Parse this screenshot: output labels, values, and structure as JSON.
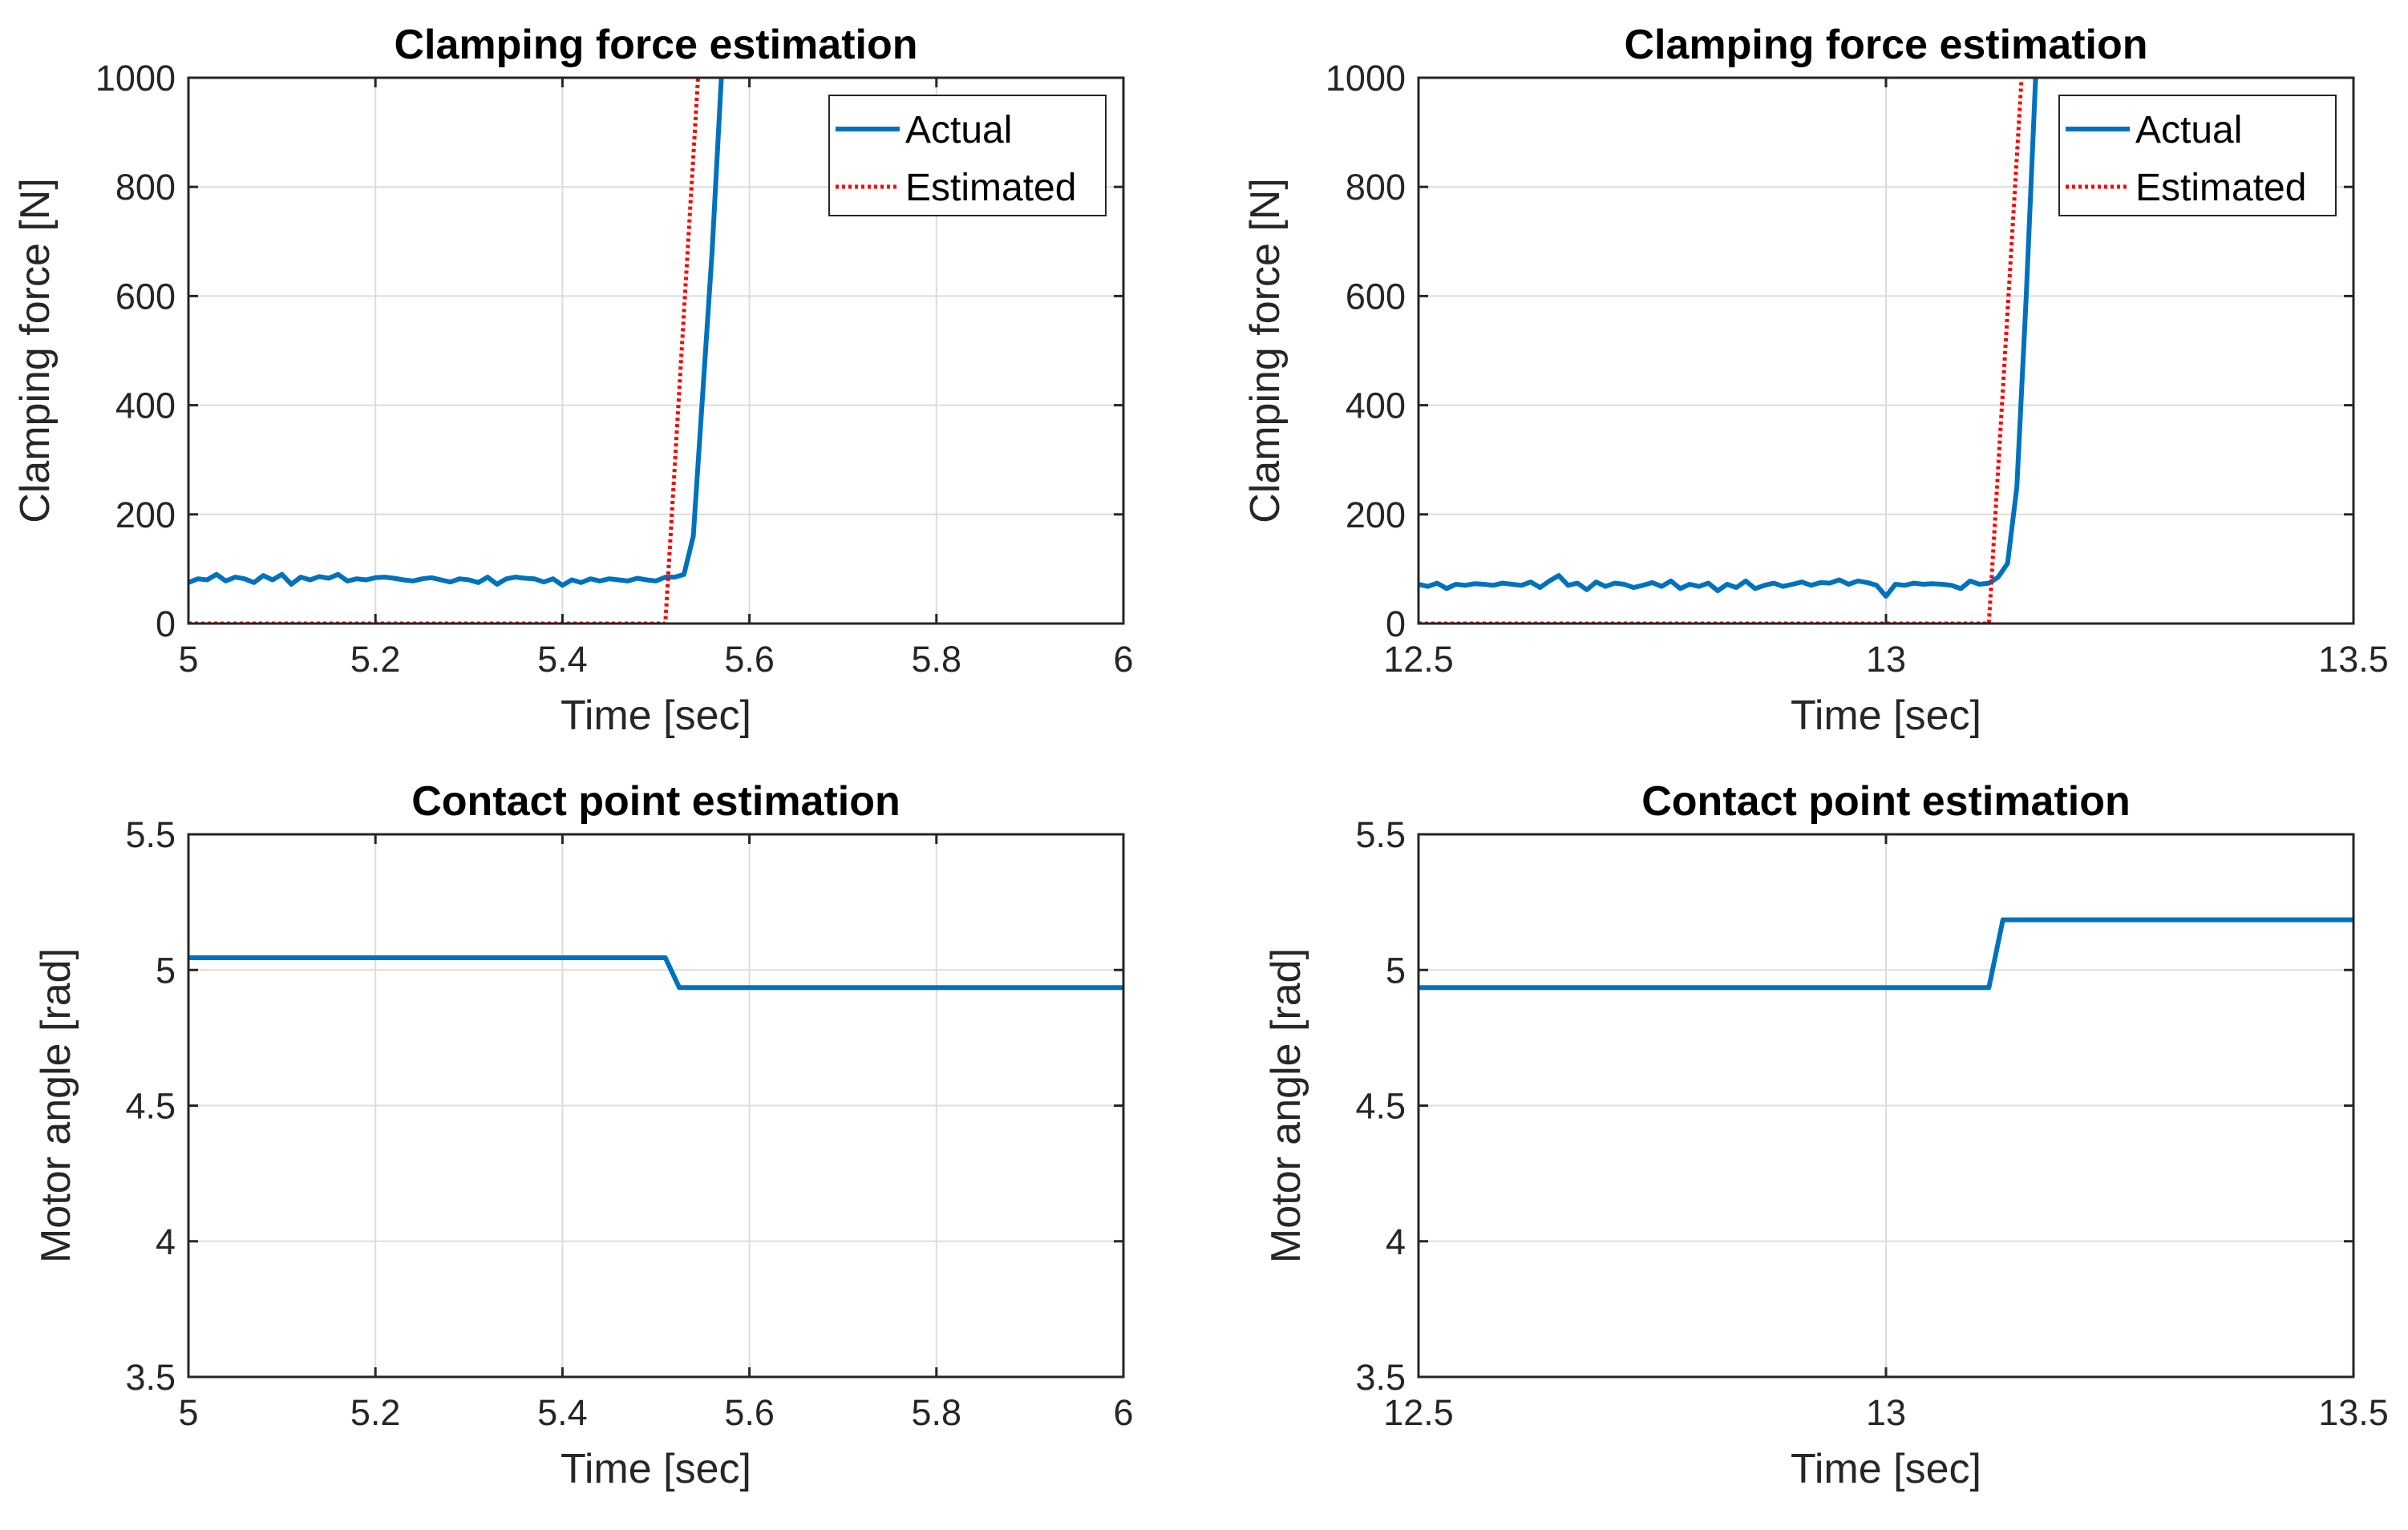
{
  "chart_data": [
    {
      "type": "line",
      "id": "clamp-1",
      "title": "Clamping force estimation",
      "xlabel": "Time [sec]",
      "ylabel": "Clamping force [N]",
      "xlim": [
        5,
        6
      ],
      "ylim": [
        0,
        1000
      ],
      "xticks": [
        5,
        5.2,
        5.4,
        5.6,
        5.8,
        6
      ],
      "xtick_labels": [
        "5",
        "5.2",
        "5.4",
        "5.6",
        "5.8",
        "6"
      ],
      "yticks": [
        0,
        200,
        400,
        600,
        800,
        1000
      ],
      "ytick_labels": [
        "0",
        "200",
        "400",
        "600",
        "800",
        "1000"
      ],
      "grid": true,
      "legend": "top-right",
      "series": [
        {
          "name": "Actual",
          "color": "#0072BD",
          "style": "solid",
          "x": [
            5.0,
            5.01,
            5.02,
            5.03,
            5.04,
            5.05,
            5.06,
            5.07,
            5.08,
            5.09,
            5.1,
            5.11,
            5.12,
            5.13,
            5.14,
            5.15,
            5.16,
            5.17,
            5.18,
            5.19,
            5.2,
            5.21,
            5.22,
            5.23,
            5.24,
            5.25,
            5.26,
            5.27,
            5.28,
            5.29,
            5.3,
            5.31,
            5.32,
            5.33,
            5.34,
            5.35,
            5.36,
            5.37,
            5.38,
            5.39,
            5.4,
            5.41,
            5.42,
            5.43,
            5.44,
            5.45,
            5.46,
            5.47,
            5.48,
            5.49,
            5.5,
            5.51,
            5.52,
            5.53,
            5.54,
            5.55,
            5.56,
            5.57
          ],
          "values": [
            75,
            82,
            80,
            90,
            78,
            85,
            82,
            75,
            88,
            80,
            90,
            72,
            85,
            80,
            86,
            83,
            90,
            78,
            82,
            80,
            84,
            85,
            83,
            80,
            78,
            82,
            84,
            80,
            76,
            82,
            80,
            75,
            85,
            72,
            82,
            85,
            83,
            82,
            76,
            82,
            70,
            80,
            75,
            82,
            78,
            82,
            80,
            78,
            83,
            80,
            78,
            85,
            85,
            90,
            160,
            420,
            680,
            1000
          ]
        },
        {
          "name": "Estimated",
          "color": "#FF0000",
          "style": "dotted",
          "x": [
            5.0,
            5.51,
            5.545
          ],
          "values": [
            0,
            0,
            1000
          ]
        }
      ]
    },
    {
      "type": "line",
      "id": "clamp-2",
      "title": "Clamping force estimation",
      "xlabel": "Time [sec]",
      "ylabel": "Clamping force [N]",
      "xlim": [
        12.5,
        13.5
      ],
      "ylim": [
        0,
        1000
      ],
      "xticks": [
        12.5,
        13,
        13.5
      ],
      "xtick_labels": [
        "12.5",
        "13",
        "13.5"
      ],
      "yticks": [
        0,
        200,
        400,
        600,
        800,
        1000
      ],
      "ytick_labels": [
        "0",
        "200",
        "400",
        "600",
        "800",
        "1000"
      ],
      "grid": true,
      "legend": "top-right",
      "series": [
        {
          "name": "Actual",
          "color": "#0072BD",
          "style": "solid",
          "x": [
            12.5,
            12.51,
            12.52,
            12.53,
            12.54,
            12.55,
            12.56,
            12.57,
            12.58,
            12.59,
            12.6,
            12.61,
            12.62,
            12.63,
            12.64,
            12.65,
            12.66,
            12.67,
            12.68,
            12.69,
            12.7,
            12.71,
            12.72,
            12.73,
            12.74,
            12.75,
            12.76,
            12.77,
            12.78,
            12.79,
            12.8,
            12.81,
            12.82,
            12.83,
            12.84,
            12.85,
            12.86,
            12.87,
            12.88,
            12.89,
            12.9,
            12.91,
            12.92,
            12.93,
            12.94,
            12.95,
            12.96,
            12.97,
            12.98,
            12.99,
            13.0,
            13.01,
            13.02,
            13.03,
            13.04,
            13.05,
            13.06,
            13.07,
            13.08,
            13.09,
            13.1,
            13.11,
            13.12,
            13.13,
            13.14,
            13.15,
            13.16
          ],
          "values": [
            72,
            68,
            74,
            64,
            72,
            70,
            73,
            72,
            70,
            74,
            72,
            70,
            76,
            66,
            78,
            88,
            70,
            74,
            62,
            76,
            68,
            74,
            72,
            66,
            70,
            75,
            68,
            78,
            64,
            72,
            68,
            74,
            60,
            72,
            66,
            78,
            64,
            70,
            74,
            68,
            72,
            76,
            70,
            75,
            74,
            80,
            72,
            78,
            75,
            70,
            50,
            72,
            70,
            74,
            72,
            73,
            72,
            70,
            64,
            78,
            72,
            74,
            85,
            110,
            250,
            600,
            1000
          ]
        },
        {
          "name": "Estimated",
          "color": "#FF0000",
          "style": "dotted",
          "x": [
            12.5,
            13.11,
            13.145
          ],
          "values": [
            0,
            0,
            1000
          ]
        }
      ]
    },
    {
      "type": "line",
      "id": "contact-1",
      "title": "Contact point estimation",
      "xlabel": "Time [sec]",
      "ylabel": "Motor angle [rad]",
      "xlim": [
        5,
        6
      ],
      "ylim": [
        3.5,
        5.5
      ],
      "xticks": [
        5,
        5.2,
        5.4,
        5.6,
        5.8,
        6
      ],
      "xtick_labels": [
        "5",
        "5.2",
        "5.4",
        "5.6",
        "5.8",
        "6"
      ],
      "yticks": [
        3.5,
        4,
        4.5,
        5,
        5.5
      ],
      "ytick_labels": [
        "3.5",
        "4",
        "4.5",
        "5",
        "5.5"
      ],
      "grid": true,
      "series": [
        {
          "name": "Motor angle",
          "color": "#0072BD",
          "style": "solid",
          "x": [
            5.0,
            5.51,
            5.525,
            6.0
          ],
          "values": [
            5.045,
            5.045,
            4.935,
            4.935
          ]
        }
      ]
    },
    {
      "type": "line",
      "id": "contact-2",
      "title": "Contact point estimation",
      "xlabel": "Time [sec]",
      "ylabel": "Motor angle [rad]",
      "xlim": [
        12.5,
        13.5
      ],
      "ylim": [
        3.5,
        5.5
      ],
      "xticks": [
        12.5,
        13,
        13.5
      ],
      "xtick_labels": [
        "12.5",
        "13",
        "13.5"
      ],
      "yticks": [
        3.5,
        4,
        4.5,
        5,
        5.5
      ],
      "ytick_labels": [
        "3.5",
        "4",
        "4.5",
        "5",
        "5.5"
      ],
      "grid": true,
      "series": [
        {
          "name": "Motor angle",
          "color": "#0072BD",
          "style": "solid",
          "x": [
            12.5,
            13.11,
            13.125,
            13.5
          ],
          "values": [
            4.935,
            4.935,
            5.185,
            5.185
          ]
        }
      ]
    }
  ]
}
